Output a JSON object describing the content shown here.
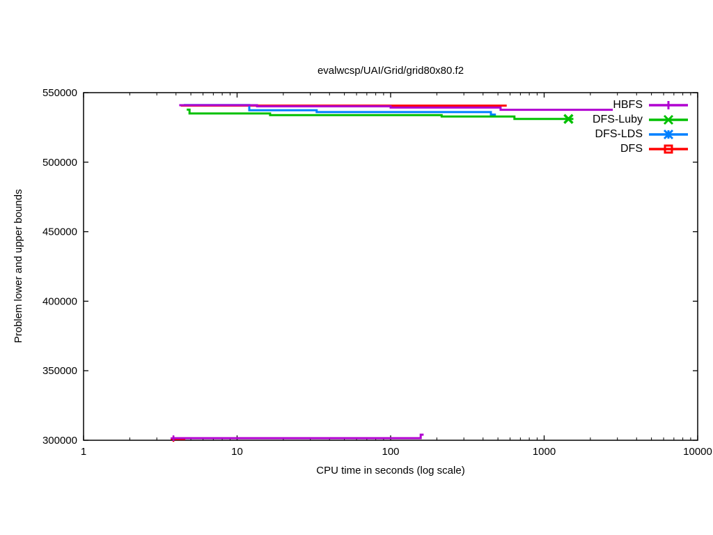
{
  "chart_data": {
    "type": "line",
    "title": "evalwcsp/UAI/Grid/grid80x80.f2",
    "xlabel": "CPU time in seconds (log scale)",
    "ylabel": "Problem lower and upper bounds",
    "x_axis": {
      "scale": "log",
      "min": 1,
      "max": 10000,
      "ticks": [
        1,
        10,
        100,
        1000,
        10000
      ],
      "minor_tick_multipliers": [
        2,
        3,
        4,
        5,
        6,
        7,
        8,
        9
      ]
    },
    "y_axis": {
      "scale": "linear",
      "min": 300000,
      "max": 550000,
      "ticks": [
        300000,
        350000,
        400000,
        450000,
        500000,
        550000
      ]
    },
    "grid": "off",
    "legend": {
      "position": "top-right",
      "entries": [
        {
          "label": "HBFS",
          "color": "#B000D0",
          "marker": "plus"
        },
        {
          "label": "DFS-Luby",
          "color": "#00C000",
          "marker": "cross"
        },
        {
          "label": "DFS-LDS",
          "color": "#0080FF",
          "marker": "star"
        },
        {
          "label": "DFS",
          "color": "#FF0000",
          "marker": "open-square"
        }
      ]
    },
    "series": [
      {
        "name": "DFS",
        "bound": "upper",
        "color": "#FF0000",
        "points": [
          [
            4.3,
            540700
          ],
          [
            570,
            540700
          ]
        ],
        "markers": []
      },
      {
        "name": "DFS",
        "bound": "lower",
        "color": "#FF0000",
        "points": [
          [
            3.8,
            300900
          ],
          [
            4.6,
            300900
          ]
        ],
        "markers": [
          {
            "t": 3.85,
            "v": 300900,
            "type": "plus"
          }
        ]
      },
      {
        "name": "DFS-LDS",
        "bound": "upper",
        "color": "#0080FF",
        "points": [
          [
            4.5,
            541100
          ],
          [
            12,
            541100
          ],
          [
            12,
            537300
          ],
          [
            33,
            537300
          ],
          [
            33,
            536000
          ],
          [
            450,
            536000
          ],
          [
            450,
            534200
          ],
          [
            485,
            534200
          ]
        ],
        "markers": []
      },
      {
        "name": "DFS-Luby",
        "bound": "upper",
        "color": "#00C000",
        "points": [
          [
            4.7,
            537800
          ],
          [
            4.9,
            537800
          ],
          [
            4.9,
            535000
          ],
          [
            16.4,
            535000
          ],
          [
            16.4,
            533800
          ],
          [
            215,
            533800
          ],
          [
            215,
            532800
          ],
          [
            640,
            532800
          ],
          [
            640,
            531100
          ],
          [
            1550,
            531100
          ]
        ],
        "markers": [
          {
            "t": 1440,
            "v": 531100,
            "type": "cross"
          }
        ]
      },
      {
        "name": "HBFS",
        "bound": "upper",
        "color": "#B000D0",
        "points": [
          [
            4.2,
            541000
          ],
          [
            13.5,
            541000
          ],
          [
            13.5,
            540200
          ],
          [
            100,
            540200
          ],
          [
            100,
            539300
          ],
          [
            520,
            539300
          ],
          [
            520,
            537700
          ],
          [
            2800,
            537700
          ]
        ],
        "markers": []
      },
      {
        "name": "HBFS",
        "bound": "lower",
        "color": "#B000D0",
        "points": [
          [
            3.8,
            301500
          ],
          [
            157,
            301500
          ],
          [
            157,
            304000
          ],
          [
            164,
            304000
          ]
        ],
        "markers": [
          {
            "t": 3.85,
            "v": 301500,
            "type": "plus"
          }
        ]
      }
    ]
  }
}
